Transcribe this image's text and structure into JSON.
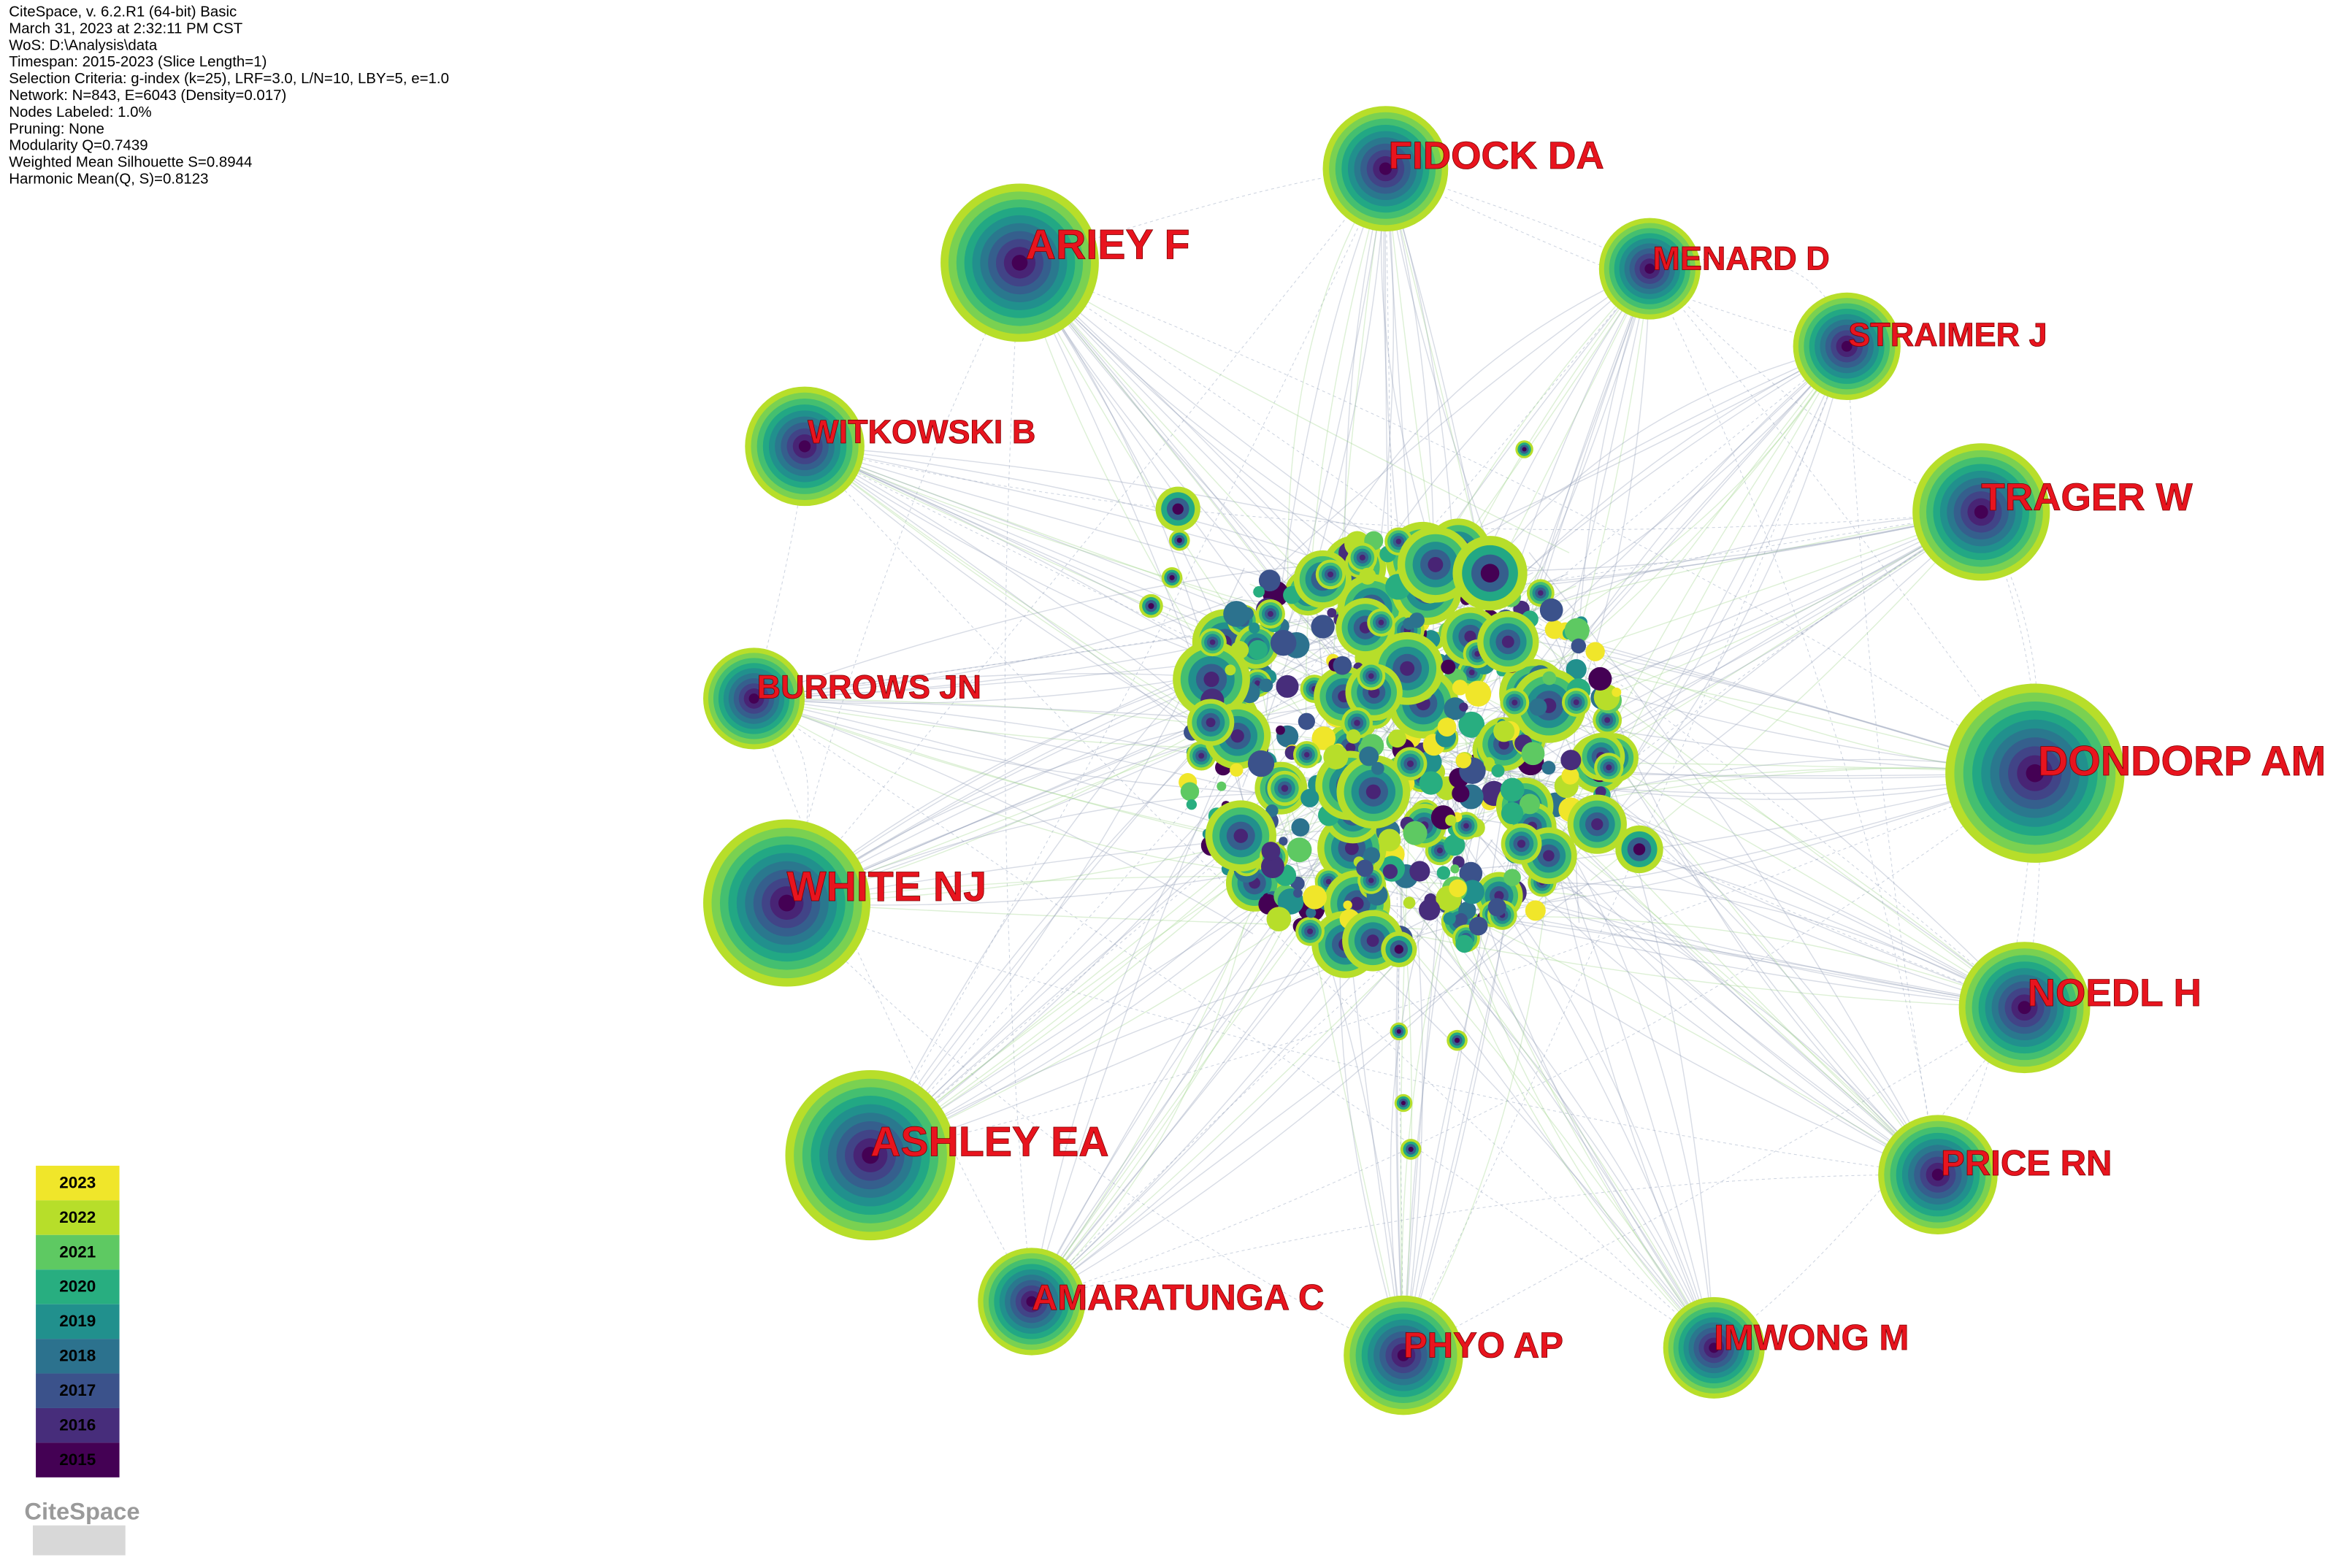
{
  "info": [
    "CiteSpace, v. 6.2.R1 (64-bit) Basic",
    "March 31, 2023 at 2:32:11 PM CST",
    "WoS: D:\\Analysis\\data",
    "Timespan: 2015-2023 (Slice Length=1)",
    "Selection Criteria: g-index (k=25), LRF=3.0, L/N=10, LBY=5, e=1.0",
    "Network: N=843, E=6043 (Density=0.017)",
    "Nodes Labeled: 1.0%",
    "Pruning: None",
    "Modularity Q=0.7439",
    "Weighted Mean Silhouette S=0.8944",
    "Harmonic Mean(Q, S)=0.8123"
  ],
  "nodes": [
    {
      "label": "FIDOCK DA"
    },
    {
      "label": "ARIEY F"
    },
    {
      "label": "MENARD D"
    },
    {
      "label": "STRAIMER J"
    },
    {
      "label": "WITKOWSKI B"
    },
    {
      "label": "TRAGER W"
    },
    {
      "label": "BURROWS JN"
    },
    {
      "label": "DONDORP AM"
    },
    {
      "label": "WHITE NJ"
    },
    {
      "label": "NOEDL H"
    },
    {
      "label": "ASHLEY EA"
    },
    {
      "label": "PRICE RN"
    },
    {
      "label": "AMARATUNGA C"
    },
    {
      "label": "PHYO AP"
    },
    {
      "label": "IMWONG M"
    }
  ],
  "legend": [
    {
      "year": "2023",
      "color": "#f0e62a"
    },
    {
      "year": "2022",
      "color": "#b7de2a"
    },
    {
      "year": "2021",
      "color": "#5ec962"
    },
    {
      "year": "2020",
      "color": "#28ae80"
    },
    {
      "year": "2019",
      "color": "#21908d"
    },
    {
      "year": "2018",
      "color": "#2c728e"
    },
    {
      "year": "2017",
      "color": "#3b528b"
    },
    {
      "year": "2016",
      "color": "#472d7b"
    },
    {
      "year": "2015",
      "color": "#440154"
    }
  ],
  "logo": "CiteSpace"
}
